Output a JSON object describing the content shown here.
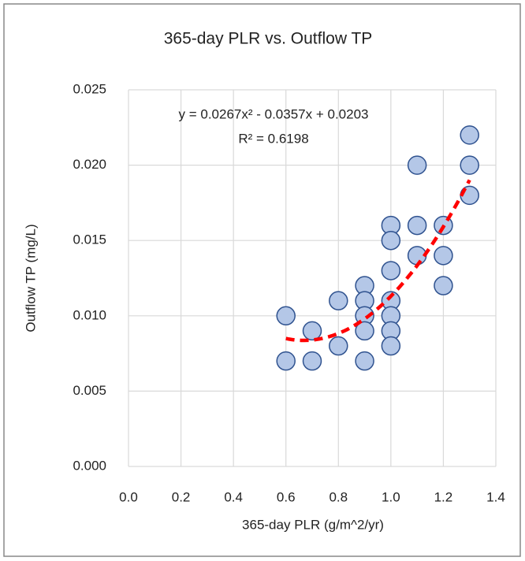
{
  "chart_data": {
    "type": "scatter",
    "title": "365-day PLR vs. Outflow TP",
    "x_label": "365-day PLR (g/m^2/yr)",
    "y_label": "Outflow TP (mg/L)",
    "x": [
      0.6,
      0.6,
      0.7,
      0.7,
      0.8,
      0.8,
      0.9,
      0.9,
      0.9,
      0.9,
      0.9,
      1.0,
      1.0,
      1.0,
      1.0,
      1.0,
      1.0,
      1.0,
      1.1,
      1.1,
      1.1,
      1.2,
      1.2,
      1.2,
      1.3,
      1.3,
      1.3
    ],
    "values": [
      0.01,
      0.007,
      0.009,
      0.007,
      0.011,
      0.008,
      0.012,
      0.011,
      0.01,
      0.009,
      0.007,
      0.016,
      0.015,
      0.013,
      0.011,
      0.01,
      0.009,
      0.008,
      0.02,
      0.016,
      0.014,
      0.016,
      0.014,
      0.012,
      0.022,
      0.02,
      0.018
    ],
    "marker_color": "#b4c7e7",
    "marker_edge": "#2f528f",
    "xlim": [
      0,
      1.4
    ],
    "xticks": [
      {
        "value": 0,
        "label": "0.0"
      },
      0.2,
      0.4,
      0.6,
      0.8,
      {
        "value": 1,
        "label": "1.0"
      },
      1.2,
      1.4
    ],
    "ylim": [
      0,
      0.025
    ],
    "yticks": [
      {
        "value": 0,
        "label": "0.000"
      },
      0.005,
      {
        "value": 0.01,
        "label": "0.010"
      },
      0.015,
      {
        "value": 0.02,
        "label": "0.020"
      },
      0.025
    ],
    "grid": true,
    "trendline": {
      "equation": "y = 0.0267x² - 0.0357x + 0.0203",
      "r2": "R² = 0.6198",
      "coefficients": [
        0.0267,
        -0.0357,
        0.0203
      ],
      "color": "#ff0000",
      "dashed": true
    }
  }
}
